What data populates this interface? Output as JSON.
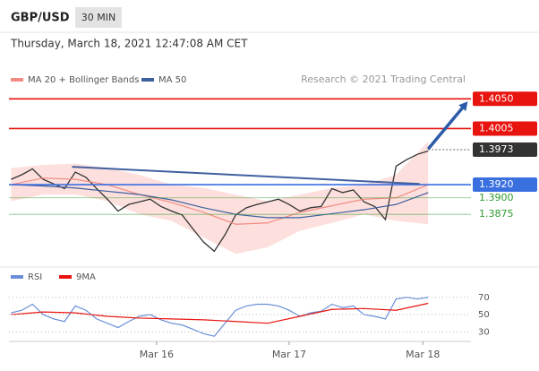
{
  "header": {
    "symbol": "GBP/USD",
    "interval": "30 MIN",
    "timestamp": "Thursday, March 18, 2021 12:47:08 AM CET",
    "credit": "Research © 2021 Trading Central"
  },
  "chart_data": [
    {
      "type": "line",
      "xlim": [
        -0.2,
        43
      ],
      "ylim": [
        1.3806,
        1.4064
      ],
      "series": [
        {
          "color": "#333333",
          "x": [
            0,
            1,
            2,
            3,
            4,
            5,
            6,
            7,
            8,
            9,
            10,
            11,
            12,
            13,
            14,
            15,
            16,
            17,
            18,
            19,
            20,
            21,
            22,
            23,
            24,
            25,
            26,
            27,
            28,
            29,
            30,
            31,
            32,
            33,
            34,
            35,
            36,
            37,
            38,
            39
          ],
          "values": [
            1.3928,
            1.3935,
            1.3944,
            1.3928,
            1.3921,
            1.3914,
            1.3939,
            1.3931,
            1.3914,
            1.3898,
            1.388,
            1.389,
            1.3894,
            1.3898,
            1.3887,
            1.388,
            1.3874,
            1.3853,
            1.3833,
            1.3819,
            1.3844,
            1.3874,
            1.3885,
            1.389,
            1.3894,
            1.3898,
            1.389,
            1.388,
            1.3885,
            1.3887,
            1.3914,
            1.3908,
            1.3912,
            1.3894,
            1.3887,
            1.3867,
            1.3948,
            1.3958,
            1.3966,
            1.3971
          ]
        },
        {
          "name": "MA 20 + Bollinger Bands",
          "color": "#f28b82",
          "band_color": "#fde0dd",
          "x": [
            0,
            3,
            6,
            9,
            12,
            15,
            18,
            21,
            24,
            27,
            30,
            33,
            36,
            39
          ],
          "values": [
            1.392,
            1.393,
            1.3928,
            1.392,
            1.3905,
            1.3893,
            1.3878,
            1.386,
            1.3862,
            1.3878,
            1.3888,
            1.3898,
            1.39,
            1.392
          ],
          "upper": [
            1.3945,
            1.395,
            1.3952,
            1.3945,
            1.3935,
            1.392,
            1.3915,
            1.3905,
            1.3895,
            1.3905,
            1.3915,
            1.392,
            1.3935,
            1.3985
          ],
          "lower": [
            1.3895,
            1.3905,
            1.3905,
            1.3895,
            1.3875,
            1.3865,
            1.384,
            1.3815,
            1.3825,
            1.385,
            1.3862,
            1.3875,
            1.3865,
            1.386
          ]
        },
        {
          "name": "MA 50",
          "color": "#3d5f9e",
          "x": [
            0,
            3,
            6,
            9,
            12,
            15,
            18,
            21,
            24,
            27,
            30,
            33,
            36,
            39
          ],
          "values": [
            1.392,
            1.3918,
            1.3915,
            1.391,
            1.3905,
            1.3897,
            1.3885,
            1.3875,
            1.387,
            1.387,
            1.3876,
            1.3882,
            1.389,
            1.3908
          ]
        }
      ],
      "levels": [
        {
          "value": 1.405,
          "label": "1.4050",
          "color": "#e8140f",
          "style": "box"
        },
        {
          "value": 1.4005,
          "label": "1.4005",
          "color": "#e8140f",
          "style": "box"
        },
        {
          "value": 1.3973,
          "label": "1.3973",
          "color": "#333333",
          "style": "box",
          "dotted": true
        },
        {
          "value": 1.392,
          "label": "1.3920",
          "color": "#3a6fe0",
          "style": "box"
        },
        {
          "value": 1.39,
          "label": "1.3900",
          "color": "#2e9a2e",
          "style": "text"
        },
        {
          "value": 1.3875,
          "label": "1.3875",
          "color": "#2e9a2e",
          "style": "text"
        }
      ],
      "trendline": {
        "color": "#4060a0",
        "x": [
          5.7,
          38.2
        ],
        "values": [
          1.3947,
          1.3921
        ]
      },
      "arrow": {
        "color": "#2c5aa8",
        "x": [
          39,
          42.7
        ],
        "values": [
          1.3974,
          1.4046
        ]
      }
    },
    {
      "type": "line",
      "xlim": [
        -0.2,
        43
      ],
      "ylim": [
        20,
        77
      ],
      "yticks": [
        30,
        50,
        70
      ],
      "grid": true,
      "xticks": [
        {
          "value": 13.6,
          "label": "Mar 16"
        },
        {
          "value": 26,
          "label": "Mar 17"
        },
        {
          "value": 38.5,
          "label": "Mar 18"
        }
      ],
      "series": [
        {
          "name": "RSI",
          "color": "#6a8fd8",
          "x": [
            0,
            1,
            2,
            3,
            4,
            5,
            6,
            7,
            8,
            9,
            10,
            11,
            12,
            13,
            14,
            15,
            16,
            17,
            18,
            19,
            20,
            21,
            22,
            23,
            24,
            25,
            26,
            27,
            28,
            29,
            30,
            31,
            32,
            33,
            34,
            35,
            36,
            37,
            38,
            39
          ],
          "values": [
            52,
            55,
            62,
            50,
            45,
            42,
            60,
            55,
            45,
            40,
            35,
            42,
            48,
            50,
            44,
            40,
            38,
            33,
            28,
            25,
            40,
            55,
            60,
            62,
            62,
            60,
            55,
            48,
            52,
            54,
            62,
            58,
            60,
            50,
            48,
            45,
            68,
            70,
            68,
            70
          ]
        },
        {
          "name": "9MA",
          "color": "#e8140f",
          "x": [
            0,
            3,
            6,
            9,
            12,
            15,
            18,
            21,
            24,
            27,
            30,
            33,
            36,
            39
          ],
          "values": [
            50,
            53,
            52,
            48,
            46,
            45,
            44,
            42,
            40,
            48,
            56,
            57,
            55,
            63
          ]
        }
      ]
    }
  ]
}
